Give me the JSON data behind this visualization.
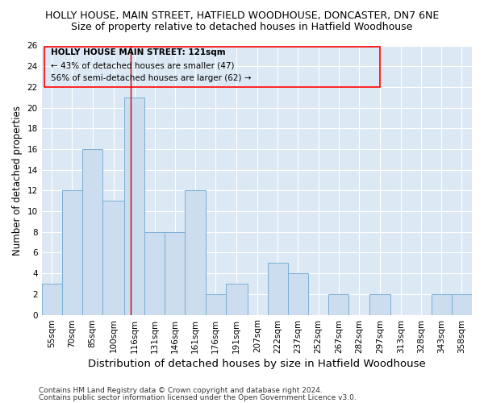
{
  "title": "HOLLY HOUSE, MAIN STREET, HATFIELD WOODHOUSE, DONCASTER, DN7 6NE",
  "subtitle": "Size of property relative to detached houses in Hatfield Woodhouse",
  "xlabel": "Distribution of detached houses by size in Hatfield Woodhouse",
  "ylabel": "Number of detached properties",
  "categories": [
    "55sqm",
    "70sqm",
    "85sqm",
    "100sqm",
    "116sqm",
    "131sqm",
    "146sqm",
    "161sqm",
    "176sqm",
    "191sqm",
    "207sqm",
    "222sqm",
    "237sqm",
    "252sqm",
    "267sqm",
    "282sqm",
    "297sqm",
    "313sqm",
    "328sqm",
    "343sqm",
    "358sqm"
  ],
  "values": [
    3,
    12,
    16,
    11,
    21,
    8,
    8,
    12,
    2,
    3,
    0,
    5,
    4,
    0,
    2,
    0,
    2,
    0,
    0,
    2,
    2
  ],
  "bar_color": "#ccddef",
  "bar_edge_color": "#7aafd4",
  "ylim": [
    0,
    26
  ],
  "yticks": [
    0,
    2,
    4,
    6,
    8,
    10,
    12,
    14,
    16,
    18,
    20,
    22,
    24,
    26
  ],
  "red_line_x": 121,
  "bin_edges": [
    55,
    70,
    85,
    100,
    116,
    131,
    146,
    161,
    176,
    191,
    207,
    222,
    237,
    252,
    267,
    282,
    297,
    313,
    328,
    343,
    358,
    373
  ],
  "annotation_title": "HOLLY HOUSE MAIN STREET: 121sqm",
  "annotation_line1": "← 43% of detached houses are smaller (47)",
  "annotation_line2": "56% of semi-detached houses are larger (62) →",
  "footer_line1": "Contains HM Land Registry data © Crown copyright and database right 2024.",
  "footer_line2": "Contains public sector information licensed under the Open Government Licence v3.0.",
  "plot_bg_color": "#dce9f5",
  "fig_bg_color": "#ffffff",
  "grid_color": "#ffffff",
  "title_fontsize": 9,
  "subtitle_fontsize": 9,
  "xlabel_fontsize": 9.5,
  "ylabel_fontsize": 8.5,
  "tick_fontsize": 7.5,
  "annotation_fontsize": 7.5,
  "footer_fontsize": 6.5
}
